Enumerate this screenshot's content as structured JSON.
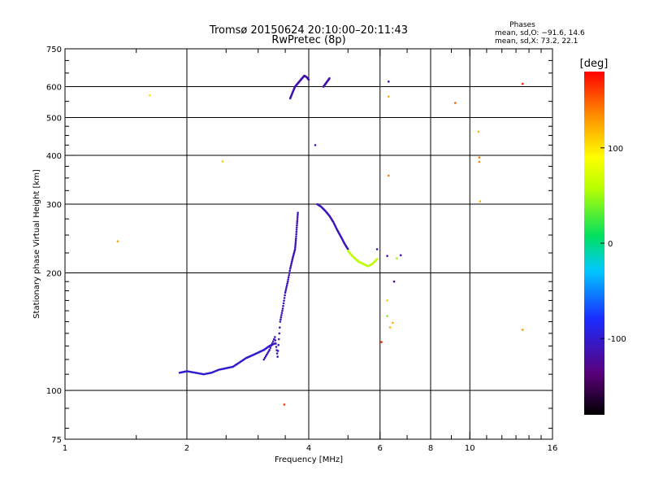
{
  "chart_data": {
    "type": "scatter",
    "title": "Tromsø 20150624 20:10:00–20:11:43",
    "subtitle": "RwPretec (8p)",
    "xlabel": "Frequency [MHz]",
    "ylabel": "Stationary phase Virtual Height [km]",
    "x_scale": "log",
    "y_scale": "log",
    "xlim": [
      1,
      16
    ],
    "ylim": [
      75,
      750
    ],
    "x_ticks": [
      1,
      2,
      4,
      6,
      8,
      10,
      16
    ],
    "y_ticks": [
      75,
      100,
      200,
      300,
      400,
      500,
      600,
      750
    ],
    "x_grid": [
      2,
      4,
      6,
      8,
      10
    ],
    "y_grid": [
      100,
      200,
      300,
      400,
      500,
      600
    ],
    "colorbar": {
      "label": "[deg]",
      "min": -180,
      "max": 180,
      "ticks": [
        -100,
        0,
        100
      ]
    },
    "phase_stats": {
      "title": "Phases",
      "o_line": "mean, sd,O: −91.6, 14.6",
      "x_line": "mean, sd,X:  73.2, 22.1"
    },
    "traces": [
      {
        "x": [
          1.92,
          2.0,
          2.1,
          2.2,
          2.3,
          2.4,
          2.5,
          2.6,
          2.7,
          2.8,
          2.9,
          3.0,
          3.1,
          3.2,
          3.3
        ],
        "y": [
          111,
          112,
          111,
          110,
          111,
          113,
          114,
          115,
          118,
          121,
          123,
          125,
          127,
          130,
          132
        ],
        "phase": -100
      },
      {
        "x": [
          3.1,
          3.2,
          3.3,
          3.35,
          3.4,
          3.45,
          3.5,
          3.55,
          3.6,
          3.65,
          3.7,
          3.72,
          3.74,
          3.76
        ],
        "y": [
          120,
          127,
          137,
          122,
          150,
          162,
          178,
          190,
          205,
          218,
          230,
          245,
          265,
          285
        ],
        "phase": -110
      },
      {
        "x": [
          3.6,
          3.65,
          3.7,
          3.75,
          3.8,
          3.85,
          3.9,
          3.95,
          4.0
        ],
        "y": [
          560,
          580,
          600,
          610,
          620,
          630,
          640,
          635,
          625
        ],
        "phase": -115
      },
      {
        "x": [
          4.35,
          4.4,
          4.45,
          4.5
        ],
        "y": [
          600,
          610,
          620,
          630
        ],
        "phase": -115
      },
      {
        "x": [
          4.2,
          4.3,
          4.4,
          4.5,
          4.6,
          4.7,
          4.8,
          4.9,
          5.0
        ],
        "y": [
          300,
          295,
          288,
          280,
          270,
          258,
          248,
          238,
          230
        ],
        "phase": -110
      },
      {
        "x": [
          5.0,
          5.1,
          5.2,
          5.3,
          5.4,
          5.5,
          5.6,
          5.7,
          5.8,
          5.9
        ],
        "y": [
          228,
          222,
          218,
          214,
          212,
          210,
          208,
          210,
          213,
          217
        ],
        "phase": 60
      }
    ],
    "scatter": [
      {
        "x": 1.35,
        "y": 241,
        "phase": 130
      },
      {
        "x": 1.62,
        "y": 570,
        "phase": 100
      },
      {
        "x": 2.45,
        "y": 386,
        "phase": 110
      },
      {
        "x": 3.48,
        "y": 92,
        "phase": 165
      },
      {
        "x": 4.15,
        "y": 425,
        "phase": -110
      },
      {
        "x": 5.9,
        "y": 230,
        "phase": -110
      },
      {
        "x": 6.05,
        "y": 133,
        "phase": 170
      },
      {
        "x": 6.3,
        "y": 618,
        "phase": -120
      },
      {
        "x": 6.3,
        "y": 566,
        "phase": 120
      },
      {
        "x": 6.3,
        "y": 355,
        "phase": 140
      },
      {
        "x": 6.25,
        "y": 221,
        "phase": -120
      },
      {
        "x": 6.25,
        "y": 170,
        "phase": 110
      },
      {
        "x": 6.25,
        "y": 155,
        "phase": 40
      },
      {
        "x": 6.35,
        "y": 145,
        "phase": 120
      },
      {
        "x": 6.45,
        "y": 149,
        "phase": 120
      },
      {
        "x": 6.5,
        "y": 190,
        "phase": -130
      },
      {
        "x": 6.6,
        "y": 218,
        "phase": 50
      },
      {
        "x": 6.75,
        "y": 222,
        "phase": -120
      },
      {
        "x": 9.2,
        "y": 545,
        "phase": 150
      },
      {
        "x": 10.5,
        "y": 460,
        "phase": 120
      },
      {
        "x": 10.55,
        "y": 395,
        "phase": 140
      },
      {
        "x": 10.55,
        "y": 385,
        "phase": 140
      },
      {
        "x": 10.6,
        "y": 305,
        "phase": 120
      },
      {
        "x": 13.5,
        "y": 610,
        "phase": 170
      },
      {
        "x": 13.5,
        "y": 143,
        "phase": 130
      }
    ]
  }
}
